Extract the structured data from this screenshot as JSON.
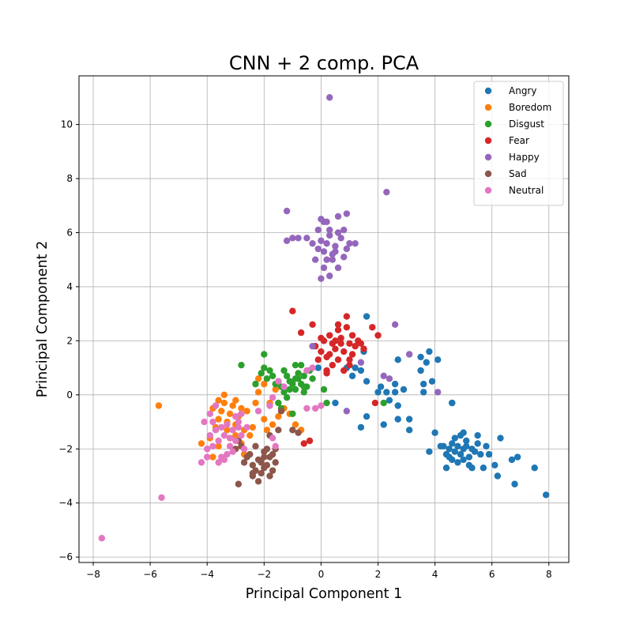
{
  "chart_data": {
    "type": "scatter",
    "title": "CNN + 2 comp. PCA",
    "xlabel": "Principal Component 1",
    "ylabel": "Principal Component 2",
    "xlim": [
      -8.5,
      8.7
    ],
    "ylim": [
      -6.2,
      11.8
    ],
    "xticks": [
      -8,
      -6,
      -4,
      -2,
      0,
      2,
      4,
      6,
      8
    ],
    "yticks": [
      -6,
      -4,
      -2,
      0,
      2,
      4,
      6,
      8,
      10
    ],
    "grid": true,
    "legend_position": "top-right",
    "series": [
      {
        "name": "Angry",
        "color": "#1f77b4",
        "points": [
          [
            4.5,
            -2.0
          ],
          [
            4.6,
            -1.8
          ],
          [
            4.7,
            -2.1
          ],
          [
            4.8,
            -1.9
          ],
          [
            4.9,
            -2.2
          ],
          [
            5.0,
            -2.0
          ],
          [
            5.1,
            -1.7
          ],
          [
            5.2,
            -2.3
          ],
          [
            5.3,
            -2.0
          ],
          [
            4.4,
            -2.2
          ],
          [
            4.6,
            -2.4
          ],
          [
            4.8,
            -2.5
          ],
          [
            5.0,
            -2.4
          ],
          [
            5.2,
            -2.6
          ],
          [
            4.7,
            -1.6
          ],
          [
            4.9,
            -1.5
          ],
          [
            5.1,
            -1.9
          ],
          [
            5.4,
            -2.1
          ],
          [
            4.3,
            -1.9
          ],
          [
            4.5,
            -2.3
          ],
          [
            5.5,
            -1.8
          ],
          [
            5.6,
            -2.2
          ],
          [
            5.0,
            -1.4
          ],
          [
            4.4,
            -2.7
          ],
          [
            5.3,
            -2.7
          ],
          [
            5.7,
            -2.7
          ],
          [
            5.9,
            -2.2
          ],
          [
            4.0,
            -1.4
          ],
          [
            4.2,
            -1.9
          ],
          [
            3.8,
            -2.1
          ],
          [
            6.1,
            -2.6
          ],
          [
            6.3,
            -1.6
          ],
          [
            6.2,
            -3.0
          ],
          [
            6.7,
            -2.4
          ],
          [
            6.9,
            -2.3
          ],
          [
            6.8,
            -3.3
          ],
          [
            7.5,
            -2.7
          ],
          [
            7.9,
            -3.7
          ],
          [
            5.5,
            -1.5
          ],
          [
            5.8,
            -1.9
          ],
          [
            1.6,
            2.9
          ],
          [
            1.2,
            1.0
          ],
          [
            1.4,
            0.9
          ],
          [
            1.5,
            1.6
          ],
          [
            1.6,
            0.5
          ],
          [
            2.0,
            0.1
          ],
          [
            2.1,
            0.3
          ],
          [
            2.3,
            0.1
          ],
          [
            2.4,
            -0.2
          ],
          [
            2.6,
            0.1
          ],
          [
            2.6,
            0.4
          ],
          [
            2.7,
            1.3
          ],
          [
            2.7,
            -0.4
          ],
          [
            2.9,
            0.2
          ],
          [
            3.1,
            -0.9
          ],
          [
            3.1,
            -1.3
          ],
          [
            3.5,
            1.4
          ],
          [
            3.5,
            0.9
          ],
          [
            3.6,
            0.1
          ],
          [
            3.6,
            0.4
          ],
          [
            3.7,
            1.2
          ],
          [
            3.8,
            1.6
          ],
          [
            3.9,
            0.5
          ],
          [
            4.1,
            1.3
          ],
          [
            4.6,
            -0.3
          ],
          [
            4.6,
            -0.3
          ],
          [
            1.1,
            0.7
          ],
          [
            0.9,
            1.0
          ],
          [
            1.6,
            -0.8
          ],
          [
            1.4,
            -1.2
          ],
          [
            2.2,
            -1.1
          ],
          [
            2.7,
            -0.9
          ],
          [
            0.5,
            -0.3
          ],
          [
            -0.1,
            1.0
          ]
        ]
      },
      {
        "name": "Boredom",
        "color": "#ff7f0e",
        "points": [
          [
            -5.7,
            -0.4
          ],
          [
            -4.2,
            -1.8
          ],
          [
            -3.8,
            -2.3
          ],
          [
            -3.9,
            -1.6
          ],
          [
            -3.7,
            -1.2
          ],
          [
            -3.6,
            -0.9
          ],
          [
            -3.5,
            -0.6
          ],
          [
            -3.4,
            -0.3
          ],
          [
            -3.3,
            -1.0
          ],
          [
            -3.2,
            -0.7
          ],
          [
            -3.1,
            -0.4
          ],
          [
            -3.0,
            -1.1
          ],
          [
            -2.9,
            -0.8
          ],
          [
            -2.8,
            -0.5
          ],
          [
            -2.7,
            -1.3
          ],
          [
            -2.6,
            -0.6
          ],
          [
            -2.5,
            -1.5
          ],
          [
            -3.6,
            -0.2
          ],
          [
            -3.4,
            0.0
          ],
          [
            -3.8,
            -0.5
          ],
          [
            -3.2,
            -1.6
          ],
          [
            -2.4,
            -1.2
          ],
          [
            -2.3,
            -0.3
          ],
          [
            -2.2,
            0.1
          ],
          [
            -2.2,
            0.6
          ],
          [
            -2.0,
            -0.9
          ],
          [
            -1.9,
            -1.3
          ],
          [
            -1.7,
            -1.1
          ],
          [
            -1.5,
            -0.8
          ],
          [
            -1.3,
            -0.5
          ],
          [
            -1.1,
            -0.7
          ],
          [
            -0.9,
            -1.1
          ],
          [
            -0.7,
            -1.3
          ],
          [
            -3.0,
            -1.5
          ],
          [
            -3.3,
            -1.3
          ],
          [
            -2.8,
            -1.8
          ],
          [
            -2.0,
            0.4
          ],
          [
            -1.6,
            0.2
          ],
          [
            -1.8,
            -0.3
          ],
          [
            -2.7,
            -2.2
          ],
          [
            -3.6,
            -1.9
          ],
          [
            -3.0,
            -0.2
          ]
        ]
      },
      {
        "name": "Disgust",
        "color": "#2ca02c",
        "points": [
          [
            -2.8,
            1.1
          ],
          [
            -2.0,
            1.5
          ],
          [
            -2.0,
            1.0
          ],
          [
            -1.8,
            0.9
          ],
          [
            -1.7,
            0.7
          ],
          [
            -1.5,
            0.5
          ],
          [
            -1.4,
            0.3
          ],
          [
            -1.3,
            0.9
          ],
          [
            -1.2,
            0.7
          ],
          [
            -1.1,
            0.5
          ],
          [
            -1.0,
            0.4
          ],
          [
            -0.9,
            0.2
          ],
          [
            -0.8,
            0.6
          ],
          [
            -0.7,
            0.4
          ],
          [
            -0.6,
            0.1
          ],
          [
            -0.9,
            1.1
          ],
          [
            -1.1,
            0.2
          ],
          [
            -0.8,
            0.8
          ],
          [
            -0.6,
            0.7
          ],
          [
            -0.5,
            0.3
          ],
          [
            -1.3,
            0.1
          ],
          [
            -1.5,
            -0.3
          ],
          [
            -1.4,
            -0.5
          ],
          [
            -1.0,
            -0.7
          ],
          [
            -0.7,
            1.1
          ],
          [
            -2.1,
            0.8
          ],
          [
            -2.3,
            0.4
          ],
          [
            -1.9,
            0.6
          ],
          [
            -1.6,
            0.4
          ],
          [
            0.1,
            0.2
          ],
          [
            0.2,
            -0.3
          ],
          [
            -0.3,
            0.6
          ],
          [
            -1.2,
            -0.1
          ],
          [
            -0.6,
            0.3
          ],
          [
            -0.9,
            0.6
          ],
          [
            2.2,
            -0.3
          ],
          [
            -0.4,
            0.9
          ]
        ]
      },
      {
        "name": "Fear",
        "color": "#d62728",
        "points": [
          [
            -1.0,
            3.1
          ],
          [
            -0.7,
            2.3
          ],
          [
            -0.3,
            2.6
          ],
          [
            -0.2,
            1.8
          ],
          [
            0.0,
            1.6
          ],
          [
            0.1,
            2.0
          ],
          [
            0.2,
            1.4
          ],
          [
            0.3,
            2.2
          ],
          [
            0.4,
            1.9
          ],
          [
            0.5,
            1.7
          ],
          [
            0.6,
            2.4
          ],
          [
            0.7,
            2.1
          ],
          [
            0.8,
            1.6
          ],
          [
            0.9,
            2.9
          ],
          [
            1.0,
            1.3
          ],
          [
            1.1,
            2.2
          ],
          [
            1.2,
            1.8
          ],
          [
            1.3,
            2.0
          ],
          [
            1.4,
            1.9
          ],
          [
            1.5,
            1.7
          ],
          [
            0.2,
            0.8
          ],
          [
            0.4,
            1.1
          ],
          [
            0.6,
            1.3
          ],
          [
            0.8,
            0.9
          ],
          [
            1.0,
            1.1
          ],
          [
            0.0,
            2.1
          ],
          [
            -0.1,
            1.3
          ],
          [
            0.3,
            1.5
          ],
          [
            0.7,
            1.9
          ],
          [
            1.8,
            2.5
          ],
          [
            2.0,
            2.2
          ],
          [
            1.9,
            -0.3
          ],
          [
            0.6,
            2.6
          ],
          [
            0.9,
            2.5
          ],
          [
            1.1,
            1.5
          ],
          [
            -0.6,
            -1.8
          ],
          [
            -0.4,
            -1.7
          ],
          [
            0.5,
            2.0
          ],
          [
            1.0,
            1.9
          ],
          [
            0.2,
            0.9
          ]
        ]
      },
      {
        "name": "Happy",
        "color": "#9467bd",
        "points": [
          [
            0.3,
            11.0
          ],
          [
            2.3,
            7.5
          ],
          [
            -1.2,
            6.8
          ],
          [
            -0.5,
            5.8
          ],
          [
            -0.3,
            5.6
          ],
          [
            -0.1,
            5.4
          ],
          [
            0.0,
            5.7
          ],
          [
            0.1,
            5.3
          ],
          [
            0.2,
            5.0
          ],
          [
            0.3,
            5.9
          ],
          [
            0.4,
            5.2
          ],
          [
            0.5,
            5.5
          ],
          [
            0.6,
            4.7
          ],
          [
            0.7,
            5.8
          ],
          [
            0.8,
            5.1
          ],
          [
            0.9,
            5.4
          ],
          [
            1.0,
            5.6
          ],
          [
            1.2,
            5.6
          ],
          [
            -0.1,
            6.1
          ],
          [
            0.1,
            6.4
          ],
          [
            0.3,
            6.1
          ],
          [
            0.6,
            6.6
          ],
          [
            0.9,
            6.7
          ],
          [
            0.0,
            6.5
          ],
          [
            0.2,
            6.4
          ],
          [
            0.8,
            6.1
          ],
          [
            -0.8,
            5.8
          ],
          [
            -1.0,
            5.8
          ],
          [
            -1.2,
            5.7
          ],
          [
            0.0,
            4.3
          ],
          [
            0.3,
            4.4
          ],
          [
            0.1,
            4.7
          ],
          [
            0.4,
            5.0
          ],
          [
            0.2,
            5.6
          ],
          [
            0.5,
            5.3
          ],
          [
            -0.2,
            5.0
          ],
          [
            2.6,
            2.6
          ],
          [
            3.1,
            1.5
          ],
          [
            2.2,
            0.7
          ],
          [
            2.4,
            0.6
          ],
          [
            4.1,
            0.1
          ],
          [
            1.4,
            1.2
          ],
          [
            0.9,
            -0.6
          ],
          [
            -0.3,
            1.8
          ],
          [
            0.6,
            6.0
          ]
        ]
      },
      {
        "name": "Sad",
        "color": "#8c564b",
        "points": [
          [
            -2.9,
            -3.3
          ],
          [
            -2.7,
            -2.5
          ],
          [
            -2.5,
            -2.2
          ],
          [
            -2.4,
            -3.0
          ],
          [
            -2.3,
            -2.8
          ],
          [
            -2.2,
            -2.4
          ],
          [
            -2.1,
            -2.9
          ],
          [
            -2.0,
            -2.1
          ],
          [
            -1.9,
            -2.6
          ],
          [
            -1.8,
            -2.3
          ],
          [
            -1.7,
            -2.8
          ],
          [
            -1.6,
            -2.5
          ],
          [
            -2.2,
            -3.2
          ],
          [
            -2.4,
            -2.6
          ],
          [
            -2.0,
            -2.7
          ],
          [
            -1.8,
            -3.0
          ],
          [
            -2.6,
            -2.3
          ],
          [
            -2.3,
            -1.9
          ],
          [
            -2.1,
            -2.5
          ],
          [
            -1.9,
            -2.0
          ],
          [
            -3.0,
            -2.0
          ],
          [
            -2.8,
            -1.9
          ],
          [
            -1.4,
            -0.6
          ],
          [
            -1.8,
            -1.5
          ],
          [
            -1.5,
            -1.3
          ],
          [
            -1.0,
            -1.3
          ],
          [
            -0.8,
            -1.4
          ],
          [
            -1.6,
            -2.0
          ],
          [
            -2.0,
            -2.3
          ],
          [
            -2.4,
            -2.9
          ],
          [
            -1.7,
            -2.2
          ],
          [
            -2.9,
            -1.7
          ]
        ]
      },
      {
        "name": "Neutral",
        "color": "#e377c2",
        "points": [
          [
            -7.7,
            -5.3
          ],
          [
            -5.6,
            -3.8
          ],
          [
            -4.2,
            -2.5
          ],
          [
            -4.0,
            -2.0
          ],
          [
            -3.9,
            -1.5
          ],
          [
            -3.8,
            -1.0
          ],
          [
            -3.7,
            -1.3
          ],
          [
            -3.6,
            -1.7
          ],
          [
            -3.5,
            -1.2
          ],
          [
            -3.4,
            -1.5
          ],
          [
            -3.3,
            -1.1
          ],
          [
            -3.2,
            -1.6
          ],
          [
            -3.1,
            -1.3
          ],
          [
            -3.0,
            -1.7
          ],
          [
            -2.9,
            -1.2
          ],
          [
            -2.8,
            -1.5
          ],
          [
            -2.7,
            -2.0
          ],
          [
            -3.5,
            -2.3
          ],
          [
            -3.3,
            -2.2
          ],
          [
            -3.1,
            -2.1
          ],
          [
            -3.7,
            -0.4
          ],
          [
            -3.9,
            -0.7
          ],
          [
            -4.1,
            -1.0
          ],
          [
            -3.6,
            -2.5
          ],
          [
            -3.4,
            -2.4
          ],
          [
            -3.0,
            -0.8
          ],
          [
            -2.8,
            -0.7
          ],
          [
            -2.6,
            -1.2
          ],
          [
            -2.2,
            -0.6
          ],
          [
            -1.7,
            -1.6
          ],
          [
            -1.6,
            -1.9
          ],
          [
            -1.8,
            -0.4
          ],
          [
            -1.7,
            -0.1
          ],
          [
            -1.5,
            0.5
          ],
          [
            -1.3,
            0.3
          ],
          [
            -0.5,
            0.9
          ],
          [
            -0.3,
            1.0
          ],
          [
            -0.5,
            -0.5
          ],
          [
            -0.2,
            -0.5
          ],
          [
            0.0,
            -0.4
          ],
          [
            -3.2,
            -1.9
          ],
          [
            -3.8,
            -1.9
          ],
          [
            -4.0,
            -2.3
          ],
          [
            -2.9,
            -1.0
          ]
        ]
      }
    ]
  }
}
